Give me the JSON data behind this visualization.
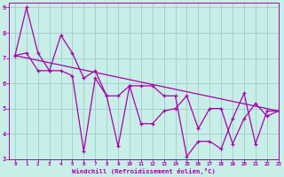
{
  "title": "",
  "xlabel": "Windchill (Refroidissement éolien,°C)",
  "ylabel": "",
  "xlim": [
    -0.5,
    23
  ],
  "ylim": [
    3,
    9.2
  ],
  "xticks": [
    0,
    1,
    2,
    3,
    4,
    5,
    6,
    7,
    8,
    9,
    10,
    11,
    12,
    13,
    14,
    15,
    16,
    17,
    18,
    19,
    20,
    21,
    22,
    23
  ],
  "yticks": [
    3,
    4,
    5,
    6,
    7,
    8,
    9
  ],
  "background_color": "#c8eee8",
  "grid_color": "#a0cccc",
  "line_color": "#aa00aa",
  "line1_x": [
    0,
    1,
    2,
    3,
    4,
    5,
    6,
    7,
    8,
    9,
    10,
    11,
    12,
    13,
    14,
    15,
    16,
    17,
    18,
    19,
    20,
    21,
    22,
    23
  ],
  "line1_y": [
    7.1,
    7.2,
    6.5,
    6.5,
    7.9,
    7.2,
    6.2,
    6.5,
    5.5,
    5.5,
    5.9,
    4.4,
    4.4,
    4.9,
    5.0,
    5.5,
    4.2,
    5.0,
    5.0,
    3.6,
    4.6,
    5.2,
    4.7,
    4.9
  ],
  "line2_x": [
    0,
    1,
    2,
    3,
    4,
    5,
    6,
    7,
    8,
    9,
    10,
    11,
    12,
    13,
    14,
    15,
    16,
    17,
    18,
    19,
    20,
    21,
    22,
    23
  ],
  "line2_y": [
    7.1,
    9.0,
    7.2,
    6.5,
    6.5,
    6.3,
    3.3,
    6.2,
    5.5,
    3.5,
    5.9,
    5.9,
    5.9,
    5.5,
    5.5,
    3.1,
    3.7,
    3.7,
    3.4,
    4.6,
    5.6,
    3.6,
    4.9,
    4.9
  ],
  "trend_x": [
    0,
    23
  ],
  "trend_y": [
    7.1,
    4.9
  ]
}
